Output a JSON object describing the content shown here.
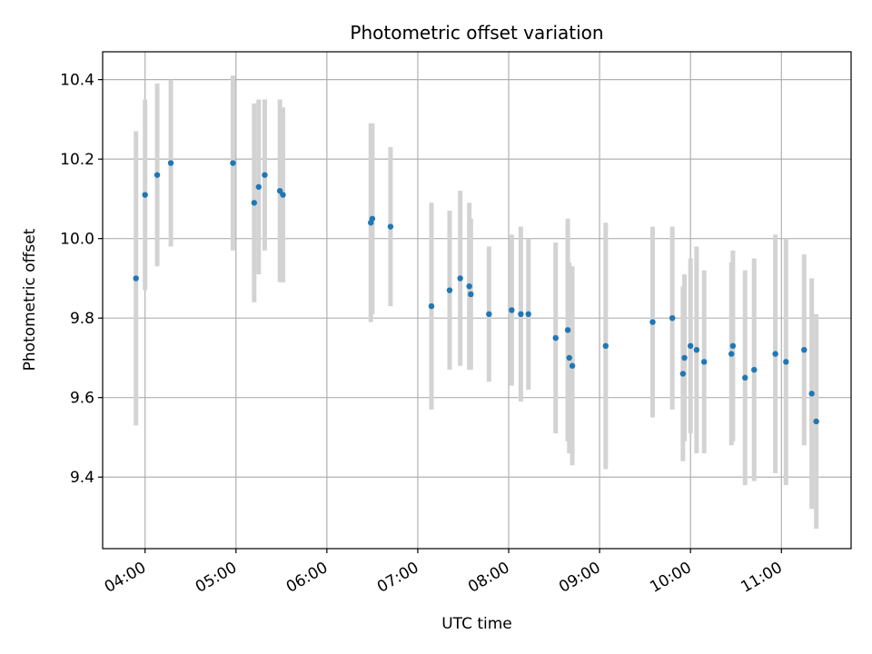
{
  "chart_data": {
    "type": "scatter",
    "title": "Photometric offset variation",
    "xlabel": "UTC time",
    "ylabel": "Photometric offset",
    "x_unit": "UTC time (HH:MM)",
    "xlim": [
      "03:32",
      "11:46"
    ],
    "ylim": [
      9.22,
      10.47
    ],
    "x_ticks": [
      "04:00",
      "05:00",
      "06:00",
      "07:00",
      "08:00",
      "09:00",
      "10:00",
      "11:00"
    ],
    "y_ticks": [
      9.4,
      9.6,
      9.8,
      10.0,
      10.2,
      10.4
    ],
    "y_tick_labels": [
      "9.4",
      "9.6",
      "9.8",
      "10.0",
      "10.2",
      "10.4"
    ],
    "grid": true,
    "colors": {
      "marker": "#1f77b4",
      "errorbar": "#d3d3d3",
      "grid": "#b0b0b0"
    },
    "series": [
      {
        "points": [
          {
            "x": "03:54",
            "y": 9.9,
            "err": 0.37
          },
          {
            "x": "04:00",
            "y": 10.11,
            "err": 0.24
          },
          {
            "x": "04:08",
            "y": 10.16,
            "err": 0.23
          },
          {
            "x": "04:17",
            "y": 10.19,
            "err": 0.21
          },
          {
            "x": "04:58",
            "y": 10.19,
            "err": 0.22
          },
          {
            "x": "05:12",
            "y": 10.09,
            "err": 0.25
          },
          {
            "x": "05:15",
            "y": 10.13,
            "err": 0.22
          },
          {
            "x": "05:19",
            "y": 10.16,
            "err": 0.19
          },
          {
            "x": "05:29",
            "y": 10.12,
            "err": 0.23
          },
          {
            "x": "05:31",
            "y": 10.11,
            "err": 0.22
          },
          {
            "x": "06:29",
            "y": 10.04,
            "err": 0.25
          },
          {
            "x": "06:30",
            "y": 10.05,
            "err": 0.24
          },
          {
            "x": "06:42",
            "y": 10.03,
            "err": 0.2
          },
          {
            "x": "07:09",
            "y": 9.83,
            "err": 0.26
          },
          {
            "x": "07:21",
            "y": 9.87,
            "err": 0.2
          },
          {
            "x": "07:28",
            "y": 9.9,
            "err": 0.22
          },
          {
            "x": "07:34",
            "y": 9.88,
            "err": 0.21
          },
          {
            "x": "07:35",
            "y": 9.86,
            "err": 0.19
          },
          {
            "x": "07:47",
            "y": 9.81,
            "err": 0.17
          },
          {
            "x": "08:02",
            "y": 9.82,
            "err": 0.19
          },
          {
            "x": "08:08",
            "y": 9.81,
            "err": 0.22
          },
          {
            "x": "08:13",
            "y": 9.81,
            "err": 0.19
          },
          {
            "x": "08:31",
            "y": 9.75,
            "err": 0.24
          },
          {
            "x": "08:39",
            "y": 9.77,
            "err": 0.28
          },
          {
            "x": "08:40",
            "y": 9.7,
            "err": 0.24
          },
          {
            "x": "08:42",
            "y": 9.68,
            "err": 0.25
          },
          {
            "x": "09:04",
            "y": 9.73,
            "err": 0.31
          },
          {
            "x": "09:35",
            "y": 9.79,
            "err": 0.24
          },
          {
            "x": "09:48",
            "y": 9.8,
            "err": 0.23
          },
          {
            "x": "09:55",
            "y": 9.66,
            "err": 0.22
          },
          {
            "x": "09:56",
            "y": 9.7,
            "err": 0.21
          },
          {
            "x": "10:00",
            "y": 9.73,
            "err": 0.22
          },
          {
            "x": "10:04",
            "y": 9.72,
            "err": 0.26
          },
          {
            "x": "10:09",
            "y": 9.69,
            "err": 0.23
          },
          {
            "x": "10:27",
            "y": 9.71,
            "err": 0.23
          },
          {
            "x": "10:28",
            "y": 9.73,
            "err": 0.24
          },
          {
            "x": "10:36",
            "y": 9.65,
            "err": 0.27
          },
          {
            "x": "10:42",
            "y": 9.67,
            "err": 0.28
          },
          {
            "x": "10:56",
            "y": 9.71,
            "err": 0.3
          },
          {
            "x": "11:03",
            "y": 9.69,
            "err": 0.31
          },
          {
            "x": "11:15",
            "y": 9.72,
            "err": 0.24
          },
          {
            "x": "11:20",
            "y": 9.61,
            "err": 0.29
          },
          {
            "x": "11:23",
            "y": 9.54,
            "err": 0.27
          }
        ]
      }
    ]
  }
}
